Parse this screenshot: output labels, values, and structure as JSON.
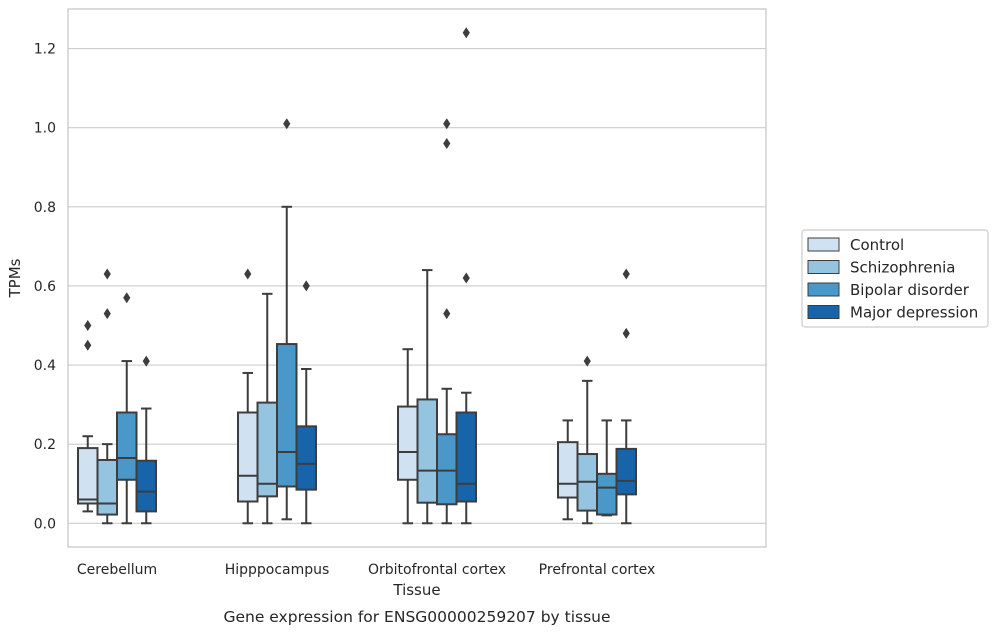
{
  "chart_data": {
    "type": "box",
    "xlabel": "Tissue",
    "ylabel": "TPMs",
    "caption": "Gene expression for ENSG00000259207 by tissue",
    "ylim": [
      -0.06,
      1.3
    ],
    "yticks": [
      0.0,
      0.2,
      0.4,
      0.6,
      0.8,
      1.0,
      1.2
    ],
    "ytick_labels": [
      "0.0",
      "0.2",
      "0.4",
      "0.6",
      "0.8",
      "1.0",
      "1.2"
    ],
    "grid": "horizontal",
    "legend_position": "right",
    "categories": [
      "Cerebellum",
      "Hipppocampus",
      "Orbitofrontal cortex",
      "Prefrontal cortex"
    ],
    "series": [
      {
        "name": "Control",
        "color": "#d0e1f2",
        "boxes": [
          {
            "q1": 0.05,
            "median": 0.06,
            "q3": 0.19,
            "whisker_low": 0.03,
            "whisker_high": 0.22,
            "outliers": [
              0.45,
              0.5
            ]
          },
          {
            "q1": 0.055,
            "median": 0.12,
            "q3": 0.28,
            "whisker_low": 0.0,
            "whisker_high": 0.38,
            "outliers": [
              0.63
            ]
          },
          {
            "q1": 0.11,
            "median": 0.18,
            "q3": 0.295,
            "whisker_low": 0.0,
            "whisker_high": 0.44,
            "outliers": []
          },
          {
            "q1": 0.065,
            "median": 0.1,
            "q3": 0.205,
            "whisker_low": 0.01,
            "whisker_high": 0.26,
            "outliers": []
          }
        ]
      },
      {
        "name": "Schizophrenia",
        "color": "#94c4df",
        "boxes": [
          {
            "q1": 0.022,
            "median": 0.05,
            "q3": 0.16,
            "whisker_low": 0.0,
            "whisker_high": 0.2,
            "outliers": [
              0.53,
              0.63
            ]
          },
          {
            "q1": 0.068,
            "median": 0.1,
            "q3": 0.305,
            "whisker_low": 0.0,
            "whisker_high": 0.58,
            "outliers": []
          },
          {
            "q1": 0.052,
            "median": 0.133,
            "q3": 0.313,
            "whisker_low": 0.0,
            "whisker_high": 0.64,
            "outliers": []
          },
          {
            "q1": 0.032,
            "median": 0.105,
            "q3": 0.175,
            "whisker_low": 0.0,
            "whisker_high": 0.36,
            "outliers": [
              0.41
            ]
          }
        ]
      },
      {
        "name": "Bipolar disorder",
        "color": "#4a98c9",
        "boxes": [
          {
            "q1": 0.11,
            "median": 0.165,
            "q3": 0.28,
            "whisker_low": 0.0,
            "whisker_high": 0.41,
            "outliers": [
              0.57
            ]
          },
          {
            "q1": 0.093,
            "median": 0.18,
            "q3": 0.453,
            "whisker_low": 0.01,
            "whisker_high": 0.8,
            "outliers": [
              1.01
            ]
          },
          {
            "q1": 0.048,
            "median": 0.133,
            "q3": 0.225,
            "whisker_low": 0.0,
            "whisker_high": 0.34,
            "outliers": [
              0.53,
              0.96,
              1.01
            ]
          },
          {
            "q1": 0.022,
            "median": 0.09,
            "q3": 0.125,
            "whisker_low": 0.02,
            "whisker_high": 0.26,
            "outliers": []
          }
        ]
      },
      {
        "name": "Major depression",
        "color": "#1764ab",
        "boxes": [
          {
            "q1": 0.03,
            "median": 0.08,
            "q3": 0.158,
            "whisker_low": 0.0,
            "whisker_high": 0.29,
            "outliers": [
              0.41
            ]
          },
          {
            "q1": 0.085,
            "median": 0.15,
            "q3": 0.245,
            "whisker_low": 0.0,
            "whisker_high": 0.39,
            "outliers": [
              0.6
            ]
          },
          {
            "q1": 0.055,
            "median": 0.1,
            "q3": 0.28,
            "whisker_low": 0.0,
            "whisker_high": 0.33,
            "outliers": [
              0.62,
              1.24
            ]
          },
          {
            "q1": 0.073,
            "median": 0.107,
            "q3": 0.188,
            "whisker_low": 0.0,
            "whisker_high": 0.26,
            "outliers": [
              0.48,
              0.63
            ]
          }
        ]
      }
    ]
  }
}
